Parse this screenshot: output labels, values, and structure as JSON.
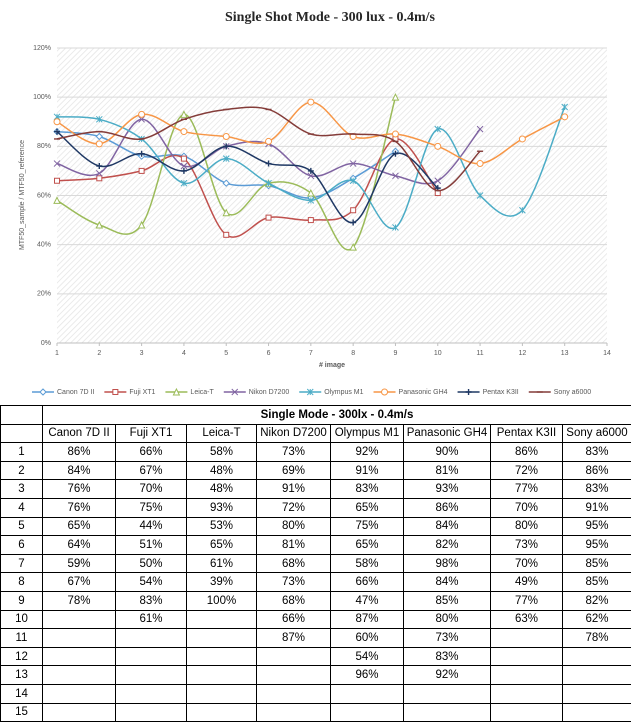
{
  "chart_data": {
    "type": "line",
    "title": "Single Shot Mode - 300 lux - 0.4m/s",
    "x_label": "# image",
    "y_label": "MTF50_sample / MTF50_reference",
    "x": [
      1,
      2,
      3,
      4,
      5,
      6,
      7,
      8,
      9,
      10,
      11,
      12,
      13
    ],
    "xlim": [
      1,
      14
    ],
    "xticks": [
      1,
      2,
      3,
      4,
      5,
      6,
      7,
      8,
      9,
      10,
      11,
      12,
      13,
      14
    ],
    "ylim": [
      0,
      120
    ],
    "yticks": [
      {
        "value": 0,
        "label": "0%"
      },
      {
        "value": 20,
        "label": "20%"
      },
      {
        "value": 40,
        "label": "40%"
      },
      {
        "value": 60,
        "label": "60%"
      },
      {
        "value": 80,
        "label": "80%"
      },
      {
        "value": 100,
        "label": "100%"
      },
      {
        "value": 120,
        "label": "120%"
      }
    ],
    "grid": true,
    "smooth": true,
    "legend": "bottom",
    "series": [
      {
        "name": "Canon 7D II",
        "color": "#5b9bd5",
        "marker": "diamond",
        "values": [
          86,
          84,
          76,
          76,
          65,
          64,
          59,
          67,
          78,
          null,
          null,
          null,
          null
        ]
      },
      {
        "name": "Fuji XT1",
        "color": "#c0504d",
        "marker": "square",
        "values": [
          66,
          67,
          70,
          75,
          44,
          51,
          50,
          54,
          83,
          61,
          null,
          null,
          null
        ]
      },
      {
        "name": "Leica-T",
        "color": "#9bbb59",
        "marker": "triangle",
        "values": [
          58,
          48,
          48,
          93,
          53,
          65,
          61,
          39,
          100,
          null,
          null,
          null,
          null
        ]
      },
      {
        "name": "Nikon D7200",
        "color": "#8064a2",
        "marker": "x",
        "values": [
          73,
          69,
          91,
          72,
          80,
          81,
          68,
          73,
          68,
          66,
          87,
          null,
          null
        ]
      },
      {
        "name": "Olympus M1",
        "color": "#4bacc6",
        "marker": "star",
        "values": [
          92,
          91,
          83,
          65,
          75,
          65,
          58,
          66,
          47,
          87,
          60,
          54,
          96
        ]
      },
      {
        "name": "Panasonic GH4",
        "color": "#f79646",
        "marker": "circle",
        "values": [
          90,
          81,
          93,
          86,
          84,
          82,
          98,
          84,
          85,
          80,
          73,
          83,
          92
        ]
      },
      {
        "name": "Pentax K3II",
        "color": "#1f3864",
        "marker": "plus",
        "values": [
          86,
          72,
          77,
          70,
          80,
          73,
          70,
          49,
          77,
          63,
          null,
          null,
          null
        ]
      },
      {
        "name": "Sony a6000",
        "color": "#843c39",
        "marker": "dash",
        "values": [
          83,
          86,
          83,
          91,
          95,
          95,
          85,
          85,
          82,
          62,
          78,
          null,
          null
        ]
      }
    ]
  },
  "table": {
    "title": "Single Mode - 300lx - 0.4m/s",
    "columns": [
      "Canon 7D II",
      "Fuji XT1",
      "Leica-T",
      "Nikon D7200",
      "Olympus M1",
      "Panasonic GH4",
      "Pentax K3II",
      "Sony a6000"
    ],
    "rows": [
      {
        "label": 1,
        "cells": [
          "86%",
          "66%",
          "58%",
          "73%",
          "92%",
          "90%",
          "86%",
          "83%"
        ]
      },
      {
        "label": 2,
        "cells": [
          "84%",
          "67%",
          "48%",
          "69%",
          "91%",
          "81%",
          "72%",
          "86%"
        ]
      },
      {
        "label": 3,
        "cells": [
          "76%",
          "70%",
          "48%",
          "91%",
          "83%",
          "93%",
          "77%",
          "83%"
        ]
      },
      {
        "label": 4,
        "cells": [
          "76%",
          "75%",
          "93%",
          "72%",
          "65%",
          "86%",
          "70%",
          "91%"
        ]
      },
      {
        "label": 5,
        "cells": [
          "65%",
          "44%",
          "53%",
          "80%",
          "75%",
          "84%",
          "80%",
          "95%"
        ]
      },
      {
        "label": 6,
        "cells": [
          "64%",
          "51%",
          "65%",
          "81%",
          "65%",
          "82%",
          "73%",
          "95%"
        ]
      },
      {
        "label": 7,
        "cells": [
          "59%",
          "50%",
          "61%",
          "68%",
          "58%",
          "98%",
          "70%",
          "85%"
        ]
      },
      {
        "label": 8,
        "cells": [
          "67%",
          "54%",
          "39%",
          "73%",
          "66%",
          "84%",
          "49%",
          "85%"
        ]
      },
      {
        "label": 9,
        "cells": [
          "78%",
          "83%",
          "100%",
          "68%",
          "47%",
          "85%",
          "77%",
          "82%"
        ]
      },
      {
        "label": 10,
        "cells": [
          null,
          "61%",
          null,
          "66%",
          "87%",
          "80%",
          "63%",
          "62%"
        ]
      },
      {
        "label": 11,
        "cells": [
          null,
          null,
          null,
          "87%",
          "60%",
          "73%",
          null,
          "78%"
        ]
      },
      {
        "label": 12,
        "cells": [
          null,
          null,
          null,
          null,
          "54%",
          "83%",
          null,
          null
        ]
      },
      {
        "label": 13,
        "cells": [
          null,
          null,
          null,
          null,
          "96%",
          "92%",
          null,
          null
        ]
      },
      {
        "label": 14,
        "cells": [
          null,
          null,
          null,
          null,
          null,
          null,
          null,
          null
        ]
      },
      {
        "label": 15,
        "cells": [
          null,
          null,
          null,
          null,
          null,
          null,
          null,
          null
        ]
      }
    ]
  }
}
